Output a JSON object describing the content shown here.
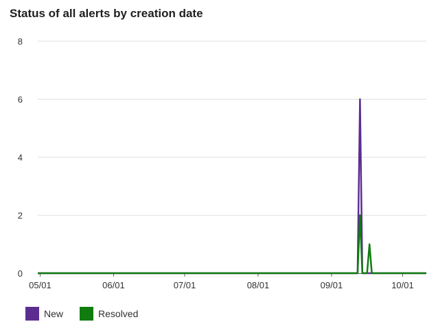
{
  "title": "Status of all alerts by creation date",
  "chart_data": {
    "type": "line",
    "title": "Status of all alerts by creation date",
    "xlabel": "",
    "ylabel": "",
    "ylim": [
      0,
      8
    ],
    "yticks": [
      0,
      2,
      4,
      6,
      8
    ],
    "xlim": [
      "2023-04-30",
      "2023-10-11"
    ],
    "xticks": [
      {
        "date": "2023-05-01",
        "label": "05/01"
      },
      {
        "date": "2023-06-01",
        "label": "06/01"
      },
      {
        "date": "2023-07-01",
        "label": "07/01"
      },
      {
        "date": "2023-08-01",
        "label": "08/01"
      },
      {
        "date": "2023-09-01",
        "label": "09/01"
      },
      {
        "date": "2023-10-01",
        "label": "10/01"
      }
    ],
    "grid": true,
    "legend": "bottom-left",
    "series": [
      {
        "name": "New",
        "color": "#5c2d91",
        "points": [
          {
            "x": "2023-04-30",
            "y": 0
          },
          {
            "x": "2023-09-12",
            "y": 0
          },
          {
            "x": "2023-09-13",
            "y": 6
          },
          {
            "x": "2023-09-14",
            "y": 0
          },
          {
            "x": "2023-10-11",
            "y": 0
          }
        ]
      },
      {
        "name": "Resolved",
        "color": "#107c10",
        "points": [
          {
            "x": "2023-04-30",
            "y": 0
          },
          {
            "x": "2023-09-12",
            "y": 0
          },
          {
            "x": "2023-09-13",
            "y": 2
          },
          {
            "x": "2023-09-14",
            "y": 0
          },
          {
            "x": "2023-09-16",
            "y": 0
          },
          {
            "x": "2023-09-17",
            "y": 1
          },
          {
            "x": "2023-09-18",
            "y": 0
          },
          {
            "x": "2023-10-11",
            "y": 0
          }
        ]
      }
    ]
  }
}
